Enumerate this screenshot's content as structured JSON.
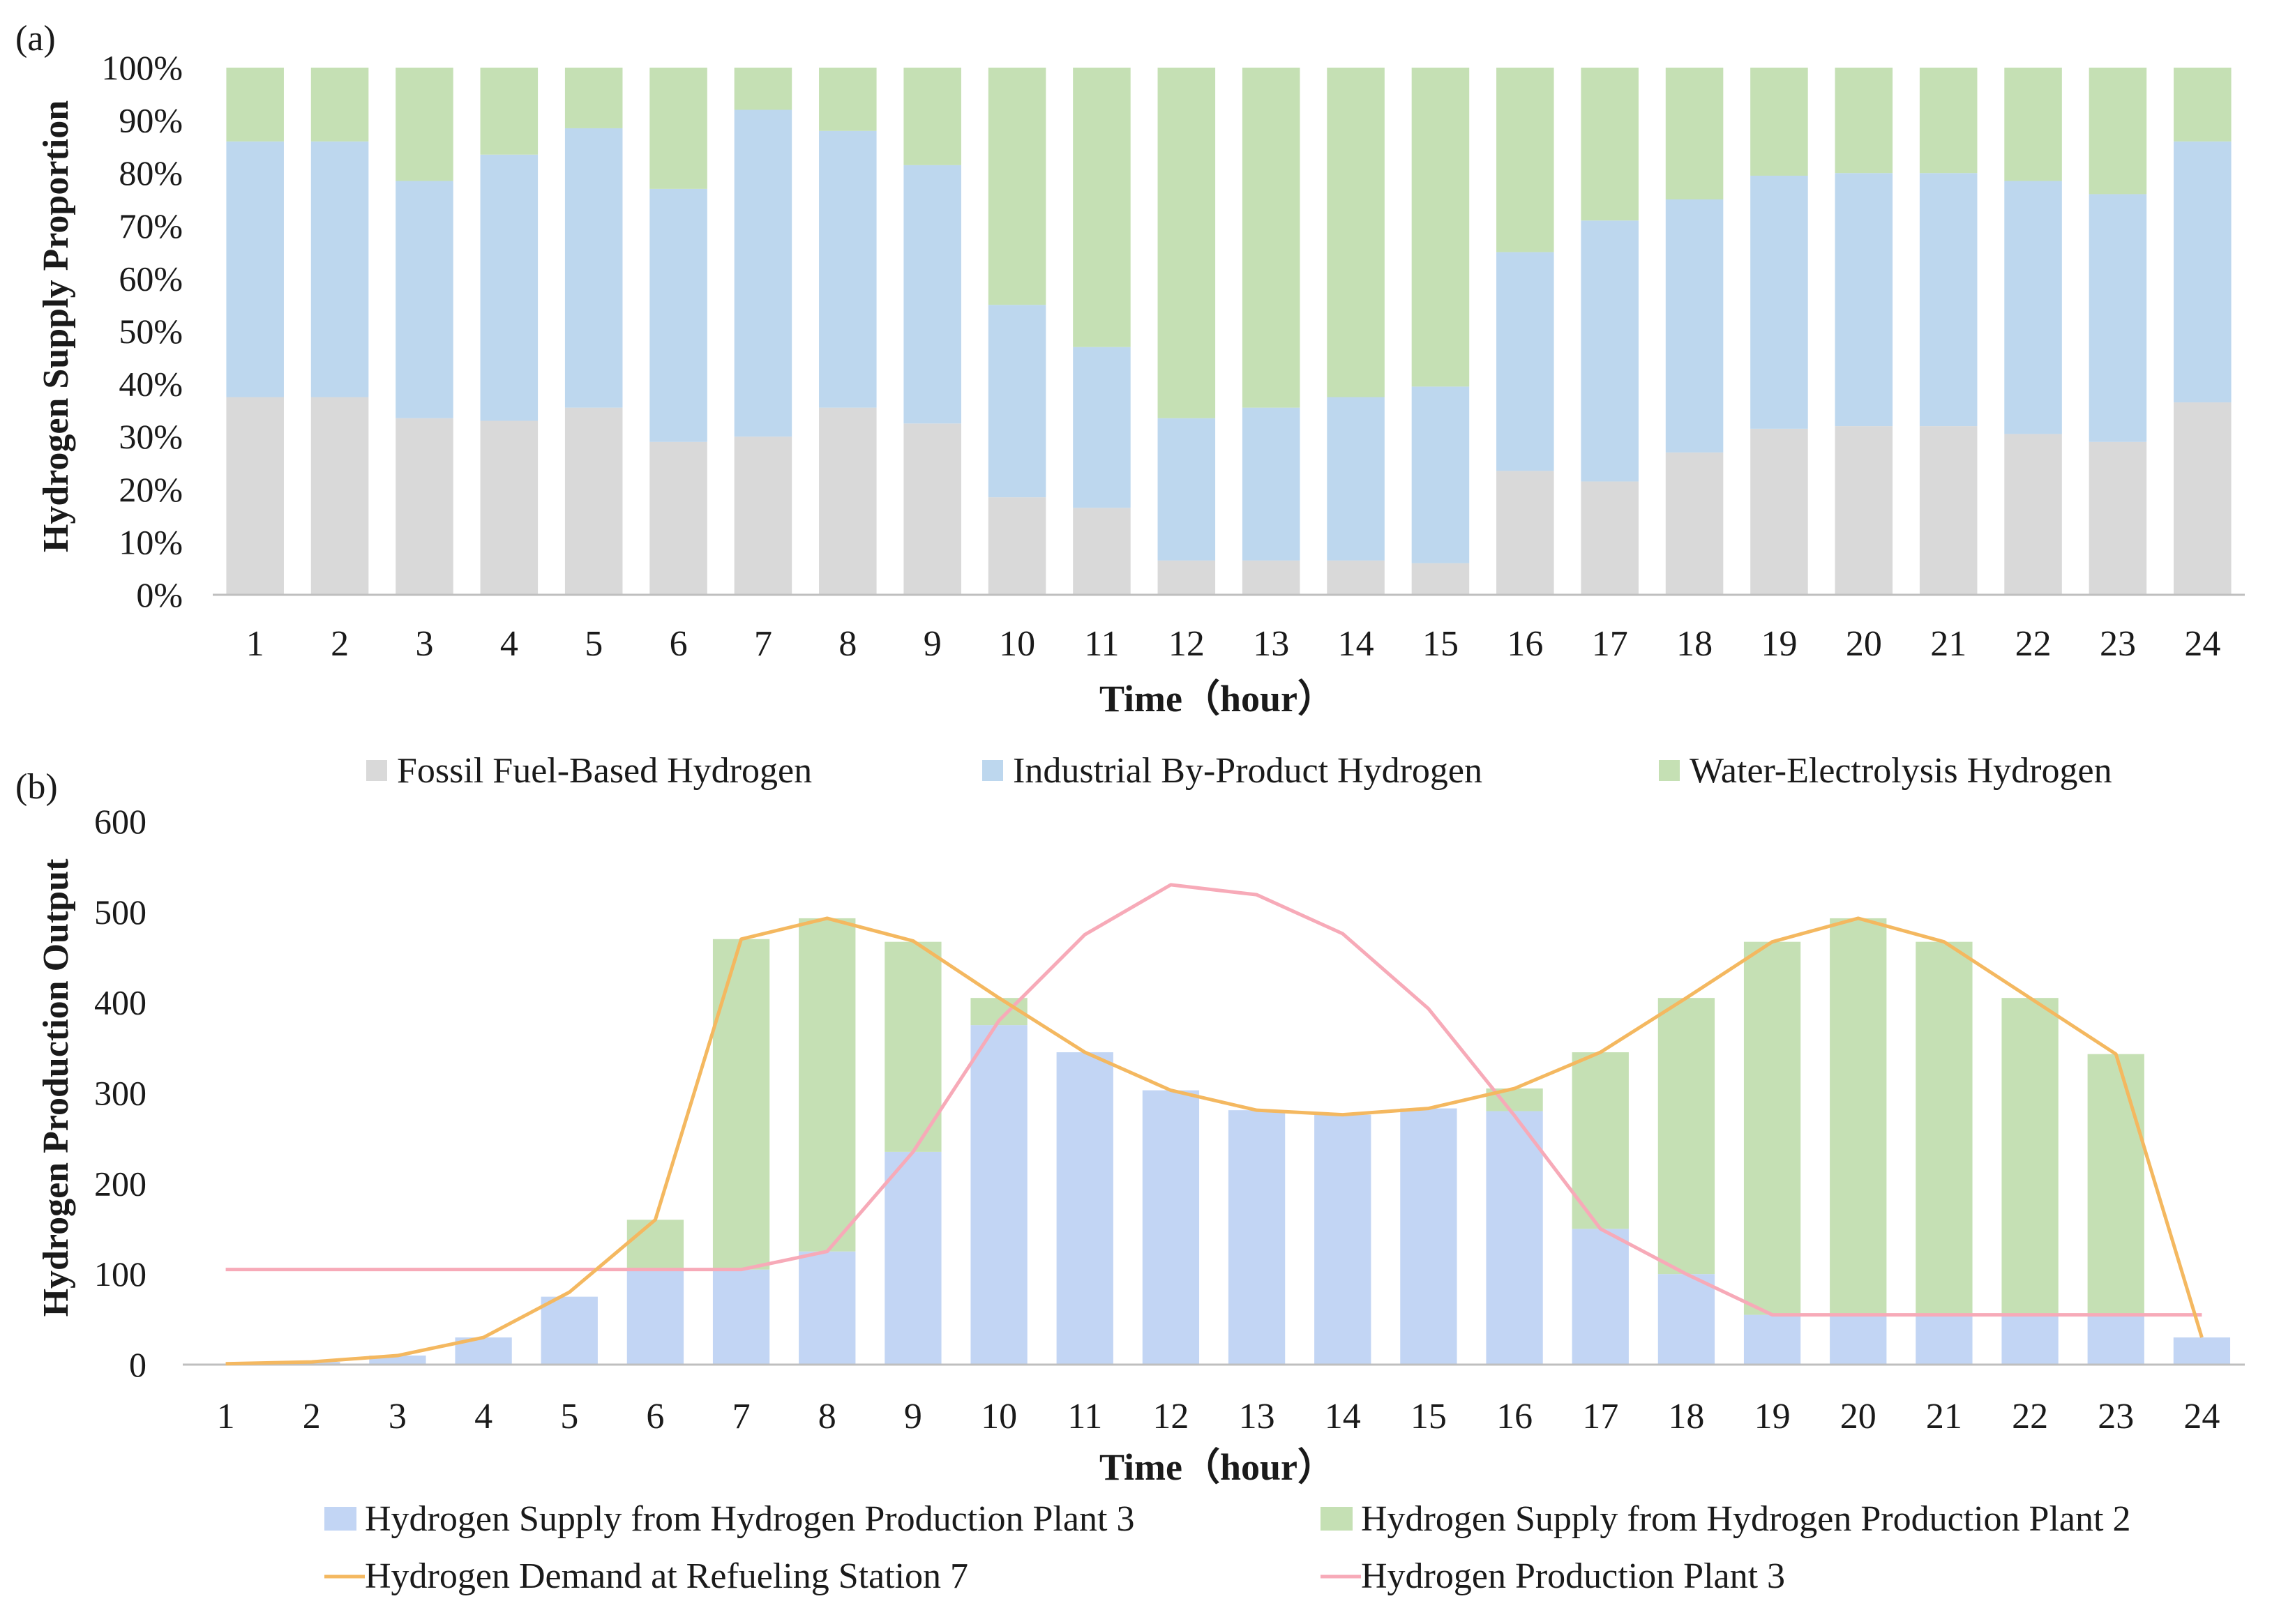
{
  "panel_a_label": "(a)",
  "panel_b_label": "(b)",
  "chart_data": [
    {
      "type": "bar",
      "stacked": true,
      "percent": true,
      "ylabel": "Hydrogen Supply Proportion",
      "xlabel": "Time（hour）",
      "ylim": [
        0,
        100
      ],
      "yticks": [
        "0%",
        "10%",
        "20%",
        "30%",
        "40%",
        "50%",
        "60%",
        "70%",
        "80%",
        "90%",
        "100%"
      ],
      "categories": [
        "1",
        "2",
        "3",
        "4",
        "5",
        "6",
        "7",
        "8",
        "9",
        "10",
        "11",
        "12",
        "13",
        "14",
        "15",
        "16",
        "17",
        "18",
        "19",
        "20",
        "21",
        "22",
        "23",
        "24"
      ],
      "series": [
        {
          "name": "Fossil Fuel-Based Hydrogen",
          "color": "#d9d9d9",
          "values": [
            37.5,
            37.5,
            33.5,
            33,
            35.5,
            29,
            30,
            35.5,
            32.5,
            18.5,
            16.5,
            6.5,
            6.5,
            6.5,
            6,
            23.5,
            21.5,
            27,
            31.5,
            32,
            32,
            30.5,
            29,
            36.5
          ]
        },
        {
          "name": "Industrial By-Product Hydrogen",
          "color": "#bdd7ee",
          "values": [
            48.5,
            48.5,
            45,
            50.5,
            53,
            48,
            62,
            52.5,
            49,
            36.5,
            30.5,
            27,
            29,
            31,
            33.5,
            41.5,
            49.5,
            48,
            48,
            48,
            48,
            48,
            47,
            49.5
          ]
        },
        {
          "name": "Water-Electrolysis Hydrogen",
          "color": "#c5e0b4",
          "values": [
            14,
            14,
            21.5,
            16.5,
            11.5,
            23,
            8,
            12,
            18.5,
            45,
            53,
            66.5,
            64.5,
            62.5,
            60.5,
            35,
            29,
            25,
            20.5,
            20,
            20,
            21.5,
            24,
            14
          ]
        }
      ]
    },
    {
      "type": "bar+line",
      "stacked": true,
      "ylabel": "Hydrogen Production Output",
      "xlabel": "Time（hour）",
      "ylim": [
        0,
        600
      ],
      "yticks": [
        "0",
        "100",
        "200",
        "300",
        "400",
        "500",
        "600"
      ],
      "categories": [
        "1",
        "2",
        "3",
        "4",
        "5",
        "6",
        "7",
        "8",
        "9",
        "10",
        "11",
        "12",
        "13",
        "14",
        "15",
        "16",
        "17",
        "18",
        "19",
        "20",
        "21",
        "22",
        "23",
        "24"
      ],
      "bars": [
        {
          "name": "Hydrogen Supply from Hydrogen Production Plant 3",
          "color": "#c2d5f4",
          "values": [
            1,
            3,
            10,
            30,
            75,
            105,
            105,
            125,
            235,
            375,
            345,
            303,
            281,
            276,
            283,
            280,
            150,
            100,
            55,
            55,
            55,
            55,
            55,
            30
          ]
        },
        {
          "name": "Hydrogen Supply from Hydrogen Production Plant 2",
          "color": "#c5e0b4",
          "values": [
            0,
            0,
            0,
            0,
            0,
            55,
            365,
            368,
            232,
            30,
            0,
            0,
            0,
            0,
            0,
            25,
            195,
            305,
            412,
            438,
            412,
            350,
            288,
            0
          ]
        }
      ],
      "lines": [
        {
          "name": "Hydrogen Demand at Refueling Station  7",
          "color": "#f4b860",
          "values": [
            1,
            3,
            10,
            30,
            80,
            160,
            470,
            493,
            468,
            405,
            345,
            303,
            281,
            276,
            283,
            305,
            345,
            405,
            467,
            493,
            467,
            405,
            343,
            30
          ]
        },
        {
          "name": "Hydrogen Production Plant 3",
          "color": "#f7aab8",
          "values": [
            105,
            105,
            105,
            105,
            105,
            105,
            105,
            125,
            235,
            380,
            475,
            530,
            519,
            476,
            393,
            275,
            150,
            100,
            55,
            55,
            55,
            55,
            55,
            55
          ]
        }
      ]
    }
  ]
}
